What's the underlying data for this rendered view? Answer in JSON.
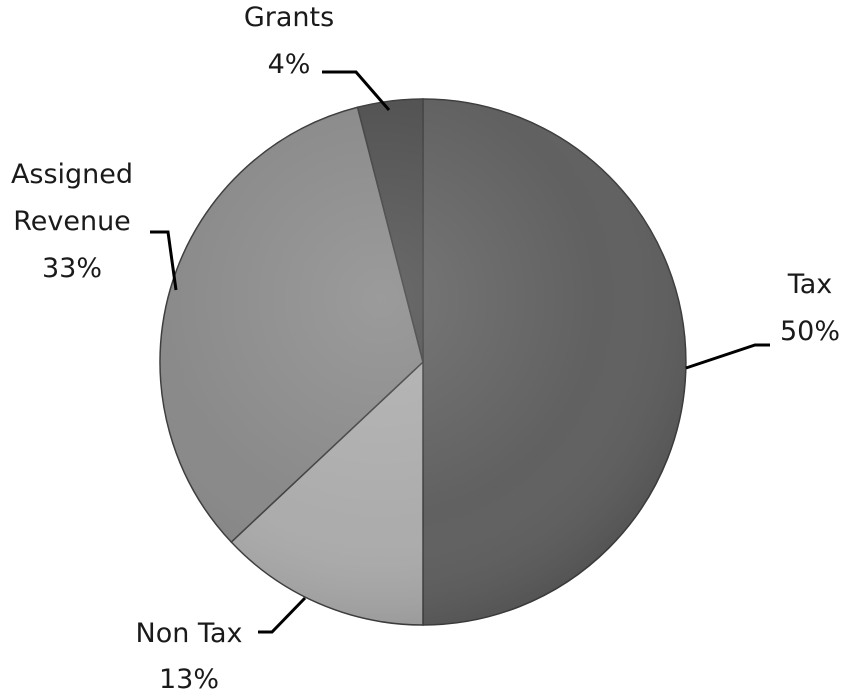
{
  "chart_data": {
    "type": "pie",
    "start_angle_deg": 0,
    "direction": "clockwise",
    "legend": "none",
    "slices": [
      {
        "label": "Tax",
        "pct_label": "50%",
        "value": 50,
        "color": "#5a5a5a"
      },
      {
        "label": "Non Tax",
        "pct_label": "13%",
        "value": 13,
        "color": "#a9a9a9"
      },
      {
        "label": "Assigned Revenue",
        "pct_label": "33%",
        "value": 33,
        "color": "#858585"
      },
      {
        "label": "Grants",
        "pct_label": "4%",
        "value": 4,
        "color": "#4a4a4a"
      }
    ]
  }
}
